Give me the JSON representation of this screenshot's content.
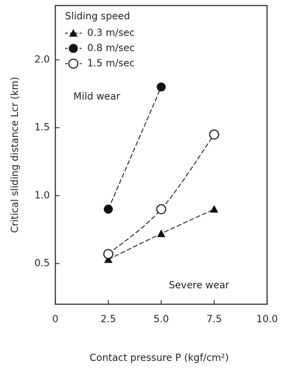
{
  "chart_data": {
    "type": "scatter",
    "x_label": "Contact pressure  P  (kgf/cm²)",
    "y_label": "Critical sliding distance  Lcr  (km)",
    "legend_title": "Sliding speed",
    "legend": "top-left",
    "x": [
      2.5,
      5,
      7.5
    ],
    "series": [
      {
        "name": "0.3 m/sec",
        "color": "#111111",
        "marker": "triangle",
        "values": [
          0.53,
          0.72,
          0.9
        ]
      },
      {
        "name": "0.8 m/sec",
        "color": "#111111",
        "marker": "circle",
        "values": [
          0.9,
          1.8,
          null
        ]
      },
      {
        "name": "1.5 m/sec",
        "color": "#111111",
        "marker": "open-circle",
        "values": [
          0.57,
          0.9,
          1.45
        ]
      }
    ],
    "annotations": [
      "Mild wear",
      "Severe wear"
    ],
    "xlim": [
      0,
      10
    ],
    "xticks": [
      0,
      2.5,
      {
        "value": 5,
        "label": "5.0"
      },
      7.5,
      {
        "value": 10,
        "label": "10.0"
      }
    ],
    "ylim": [
      0.2,
      2.4
    ],
    "yticks": [
      0.5,
      {
        "value": 1,
        "label": "1.0"
      },
      1.5,
      {
        "value": 2,
        "label": "2.0"
      }
    ]
  }
}
